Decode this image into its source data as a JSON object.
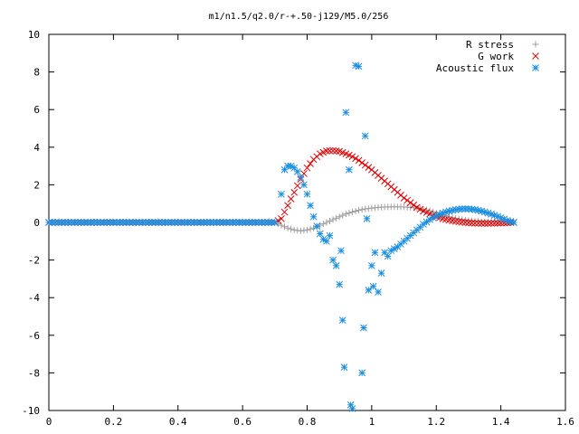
{
  "chart_data": {
    "type": "scatter",
    "title": "m1/n1.5/q2.0/r-+.50-j129/M5.0/256",
    "xlabel": "",
    "ylabel": "",
    "xlim": [
      0,
      1.6
    ],
    "ylim": [
      -10,
      10
    ],
    "xticks": [
      "0",
      "0.2",
      "0.4",
      "0.6",
      "0.8",
      "1",
      "1.2",
      "1.4",
      "1.6"
    ],
    "yticks": [
      "10",
      "8",
      "6",
      "4",
      "2",
      "0",
      "-2",
      "-4",
      "-6",
      "-8",
      "-10"
    ],
    "grid": false,
    "legend_position": "top-right",
    "series": [
      {
        "name": "R stress",
        "marker": "plus",
        "color": "#a0a0a0",
        "x": [
          0.0,
          0.05,
          0.1,
          0.15,
          0.2,
          0.25,
          0.3,
          0.35,
          0.4,
          0.45,
          0.5,
          0.55,
          0.6,
          0.65,
          0.7,
          0.72,
          0.74,
          0.76,
          0.78,
          0.8,
          0.82,
          0.84,
          0.86,
          0.88,
          0.9,
          0.92,
          0.94,
          0.96,
          0.98,
          1.0,
          1.02,
          1.04,
          1.06,
          1.08,
          1.1,
          1.12,
          1.14,
          1.16,
          1.18,
          1.2,
          1.22,
          1.24,
          1.26,
          1.28,
          1.3,
          1.32,
          1.34,
          1.36,
          1.38,
          1.4,
          1.42,
          1.44
        ],
        "y": [
          0,
          0,
          0,
          0,
          0,
          0,
          0,
          0,
          0,
          0,
          0,
          0,
          0,
          0,
          0,
          -0.15,
          -0.3,
          -0.4,
          -0.45,
          -0.4,
          -0.3,
          -0.15,
          0,
          0.15,
          0.3,
          0.45,
          0.55,
          0.65,
          0.72,
          0.76,
          0.8,
          0.82,
          0.83,
          0.83,
          0.82,
          0.8,
          0.76,
          0.7,
          0.62,
          0.5,
          0.4,
          0.3,
          0.22,
          0.15,
          0.1,
          0.06,
          0.04,
          0.02,
          0.01,
          0.0,
          0.0,
          0.0
        ]
      },
      {
        "name": "G work",
        "marker": "cross",
        "color": "#e00000",
        "x": [
          0.0,
          0.05,
          0.1,
          0.15,
          0.2,
          0.25,
          0.3,
          0.35,
          0.4,
          0.45,
          0.5,
          0.55,
          0.6,
          0.65,
          0.7,
          0.72,
          0.74,
          0.76,
          0.78,
          0.8,
          0.82,
          0.84,
          0.86,
          0.88,
          0.9,
          0.92,
          0.94,
          0.96,
          0.98,
          1.0,
          1.02,
          1.04,
          1.06,
          1.08,
          1.1,
          1.12,
          1.14,
          1.16,
          1.18,
          1.2,
          1.22,
          1.24,
          1.26,
          1.28,
          1.3,
          1.32,
          1.34,
          1.36,
          1.38,
          1.4,
          1.42,
          1.44
        ],
        "y": [
          0,
          0,
          0,
          0,
          0,
          0,
          0,
          0,
          0,
          0,
          0,
          0,
          0,
          0,
          0,
          0.2,
          0.9,
          1.6,
          2.3,
          2.9,
          3.35,
          3.65,
          3.8,
          3.82,
          3.78,
          3.65,
          3.5,
          3.3,
          3.05,
          2.8,
          2.5,
          2.2,
          1.9,
          1.6,
          1.3,
          1.05,
          0.8,
          0.6,
          0.45,
          0.3,
          0.2,
          0.12,
          0.06,
          0.02,
          -0.02,
          -0.04,
          -0.05,
          -0.05,
          -0.04,
          -0.03,
          -0.02,
          0.0
        ]
      },
      {
        "name": "Acoustic flux",
        "marker": "star",
        "color": "#1a8ee0",
        "x": [
          0.0,
          0.05,
          0.1,
          0.15,
          0.2,
          0.25,
          0.3,
          0.35,
          0.4,
          0.45,
          0.5,
          0.55,
          0.6,
          0.65,
          0.7,
          0.72,
          0.73,
          0.74,
          0.75,
          0.76,
          0.77,
          0.78,
          0.79,
          0.8,
          0.81,
          0.82,
          0.83,
          0.84,
          0.85,
          0.86,
          0.87,
          0.88,
          0.89,
          0.9,
          0.905,
          0.91,
          0.915,
          0.92,
          0.93,
          0.935,
          0.94,
          0.95,
          0.96,
          0.97,
          0.975,
          0.98,
          0.985,
          0.99,
          1.0,
          1.005,
          1.01,
          1.02,
          1.03,
          1.04,
          1.05,
          1.06,
          1.08,
          1.1,
          1.12,
          1.14,
          1.16,
          1.18,
          1.2,
          1.22,
          1.24,
          1.26,
          1.28,
          1.3,
          1.32,
          1.34,
          1.36,
          1.38,
          1.4,
          1.42,
          1.44
        ],
        "y": [
          0,
          0,
          0,
          0,
          0,
          0,
          0,
          0,
          0,
          0,
          0,
          0,
          0,
          0,
          0,
          1.5,
          2.8,
          3.0,
          3.0,
          2.9,
          2.7,
          2.4,
          2.0,
          1.5,
          0.9,
          0.3,
          -0.2,
          -0.6,
          -0.9,
          -1.0,
          -0.7,
          -2.0,
          -2.3,
          -3.3,
          -1.5,
          -5.2,
          -7.7,
          5.85,
          2.8,
          -9.7,
          -9.9,
          8.35,
          8.3,
          -8.0,
          -5.6,
          4.6,
          0.2,
          -3.6,
          -2.3,
          -3.4,
          -1.6,
          -3.7,
          -2.7,
          -1.6,
          -1.8,
          -1.5,
          -1.3,
          -1.0,
          -0.7,
          -0.4,
          -0.1,
          0.15,
          0.35,
          0.5,
          0.6,
          0.68,
          0.72,
          0.72,
          0.68,
          0.6,
          0.5,
          0.38,
          0.25,
          0.1,
          0.0
        ]
      }
    ]
  }
}
